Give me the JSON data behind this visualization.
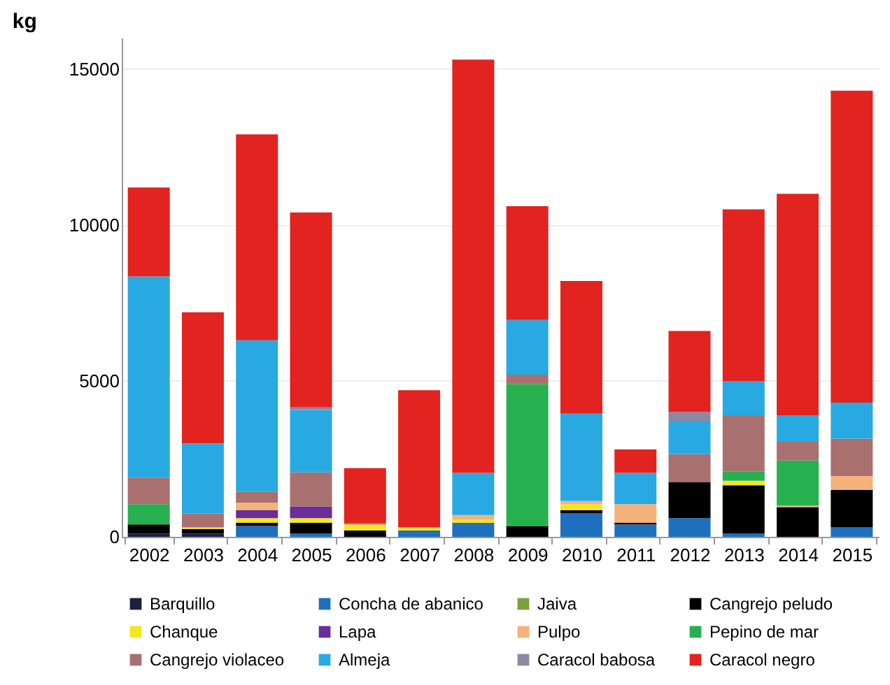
{
  "chart_data": {
    "type": "bar",
    "stacked": true,
    "ylabel": "kg",
    "categories": [
      "2002",
      "2003",
      "2004",
      "2005",
      "2006",
      "2007",
      "2008",
      "2009",
      "2010",
      "2011",
      "2012",
      "2013",
      "2014",
      "2015"
    ],
    "ylim": [
      0,
      16000
    ],
    "yticks": [
      0,
      5000,
      10000,
      15000
    ],
    "grid": "y",
    "legend": "bottom",
    "series": [
      {
        "name": "Barquillo",
        "color": "#1b2040",
        "values": [
          100,
          100,
          0,
          0,
          0,
          0,
          0,
          0,
          0,
          0,
          0,
          0,
          0,
          0
        ]
      },
      {
        "name": "Concha de abanico",
        "color": "#1f6fbf",
        "values": [
          0,
          0,
          350,
          100,
          0,
          200,
          450,
          0,
          750,
          400,
          600,
          100,
          0,
          300
        ]
      },
      {
        "name": "Jaiva",
        "color": "#7aa03c",
        "values": [
          0,
          0,
          0,
          0,
          0,
          0,
          0,
          0,
          0,
          0,
          0,
          0,
          0,
          0
        ]
      },
      {
        "name": "Cangrejo peludo",
        "color": "#000000",
        "values": [
          300,
          150,
          100,
          350,
          200,
          0,
          0,
          350,
          100,
          50,
          1150,
          1550,
          950,
          1200
        ]
      },
      {
        "name": "Chanque",
        "color": "#f5e620",
        "values": [
          0,
          50,
          150,
          150,
          200,
          100,
          100,
          0,
          200,
          0,
          0,
          150,
          0,
          0
        ]
      },
      {
        "name": "Lapa",
        "color": "#6a2d9c",
        "values": [
          0,
          0,
          250,
          370,
          0,
          0,
          0,
          0,
          0,
          0,
          0,
          0,
          0,
          0
        ]
      },
      {
        "name": "Pulpo",
        "color": "#f5b27a",
        "values": [
          0,
          0,
          250,
          0,
          0,
          0,
          150,
          0,
          100,
          600,
          0,
          0,
          50,
          450
        ]
      },
      {
        "name": "Pepino de mar",
        "color": "#27b050",
        "values": [
          650,
          0,
          0,
          0,
          0,
          0,
          0,
          4550,
          0,
          0,
          0,
          300,
          1450,
          0
        ]
      },
      {
        "name": "Cangrejo violaceo",
        "color": "#a97070",
        "values": [
          850,
          450,
          350,
          1100,
          50,
          0,
          0,
          300,
          0,
          0,
          900,
          1800,
          600,
          1200
        ]
      },
      {
        "name": "Almeja",
        "color": "#29a9e1",
        "values": [
          6450,
          2250,
          4850,
          2000,
          0,
          0,
          1350,
          1750,
          2800,
          1000,
          1050,
          1100,
          850,
          1150
        ]
      },
      {
        "name": "Caracol babosa",
        "color": "#8a8aa6",
        "values": [
          0,
          0,
          0,
          80,
          0,
          0,
          0,
          0,
          0,
          0,
          300,
          0,
          0,
          0
        ]
      },
      {
        "name": "Caracol negro",
        "color": "#e2231f",
        "values": [
          2850,
          4200,
          6600,
          6250,
          1750,
          4400,
          13250,
          3650,
          4250,
          750,
          2600,
          5500,
          7100,
          10000
        ]
      }
    ]
  }
}
